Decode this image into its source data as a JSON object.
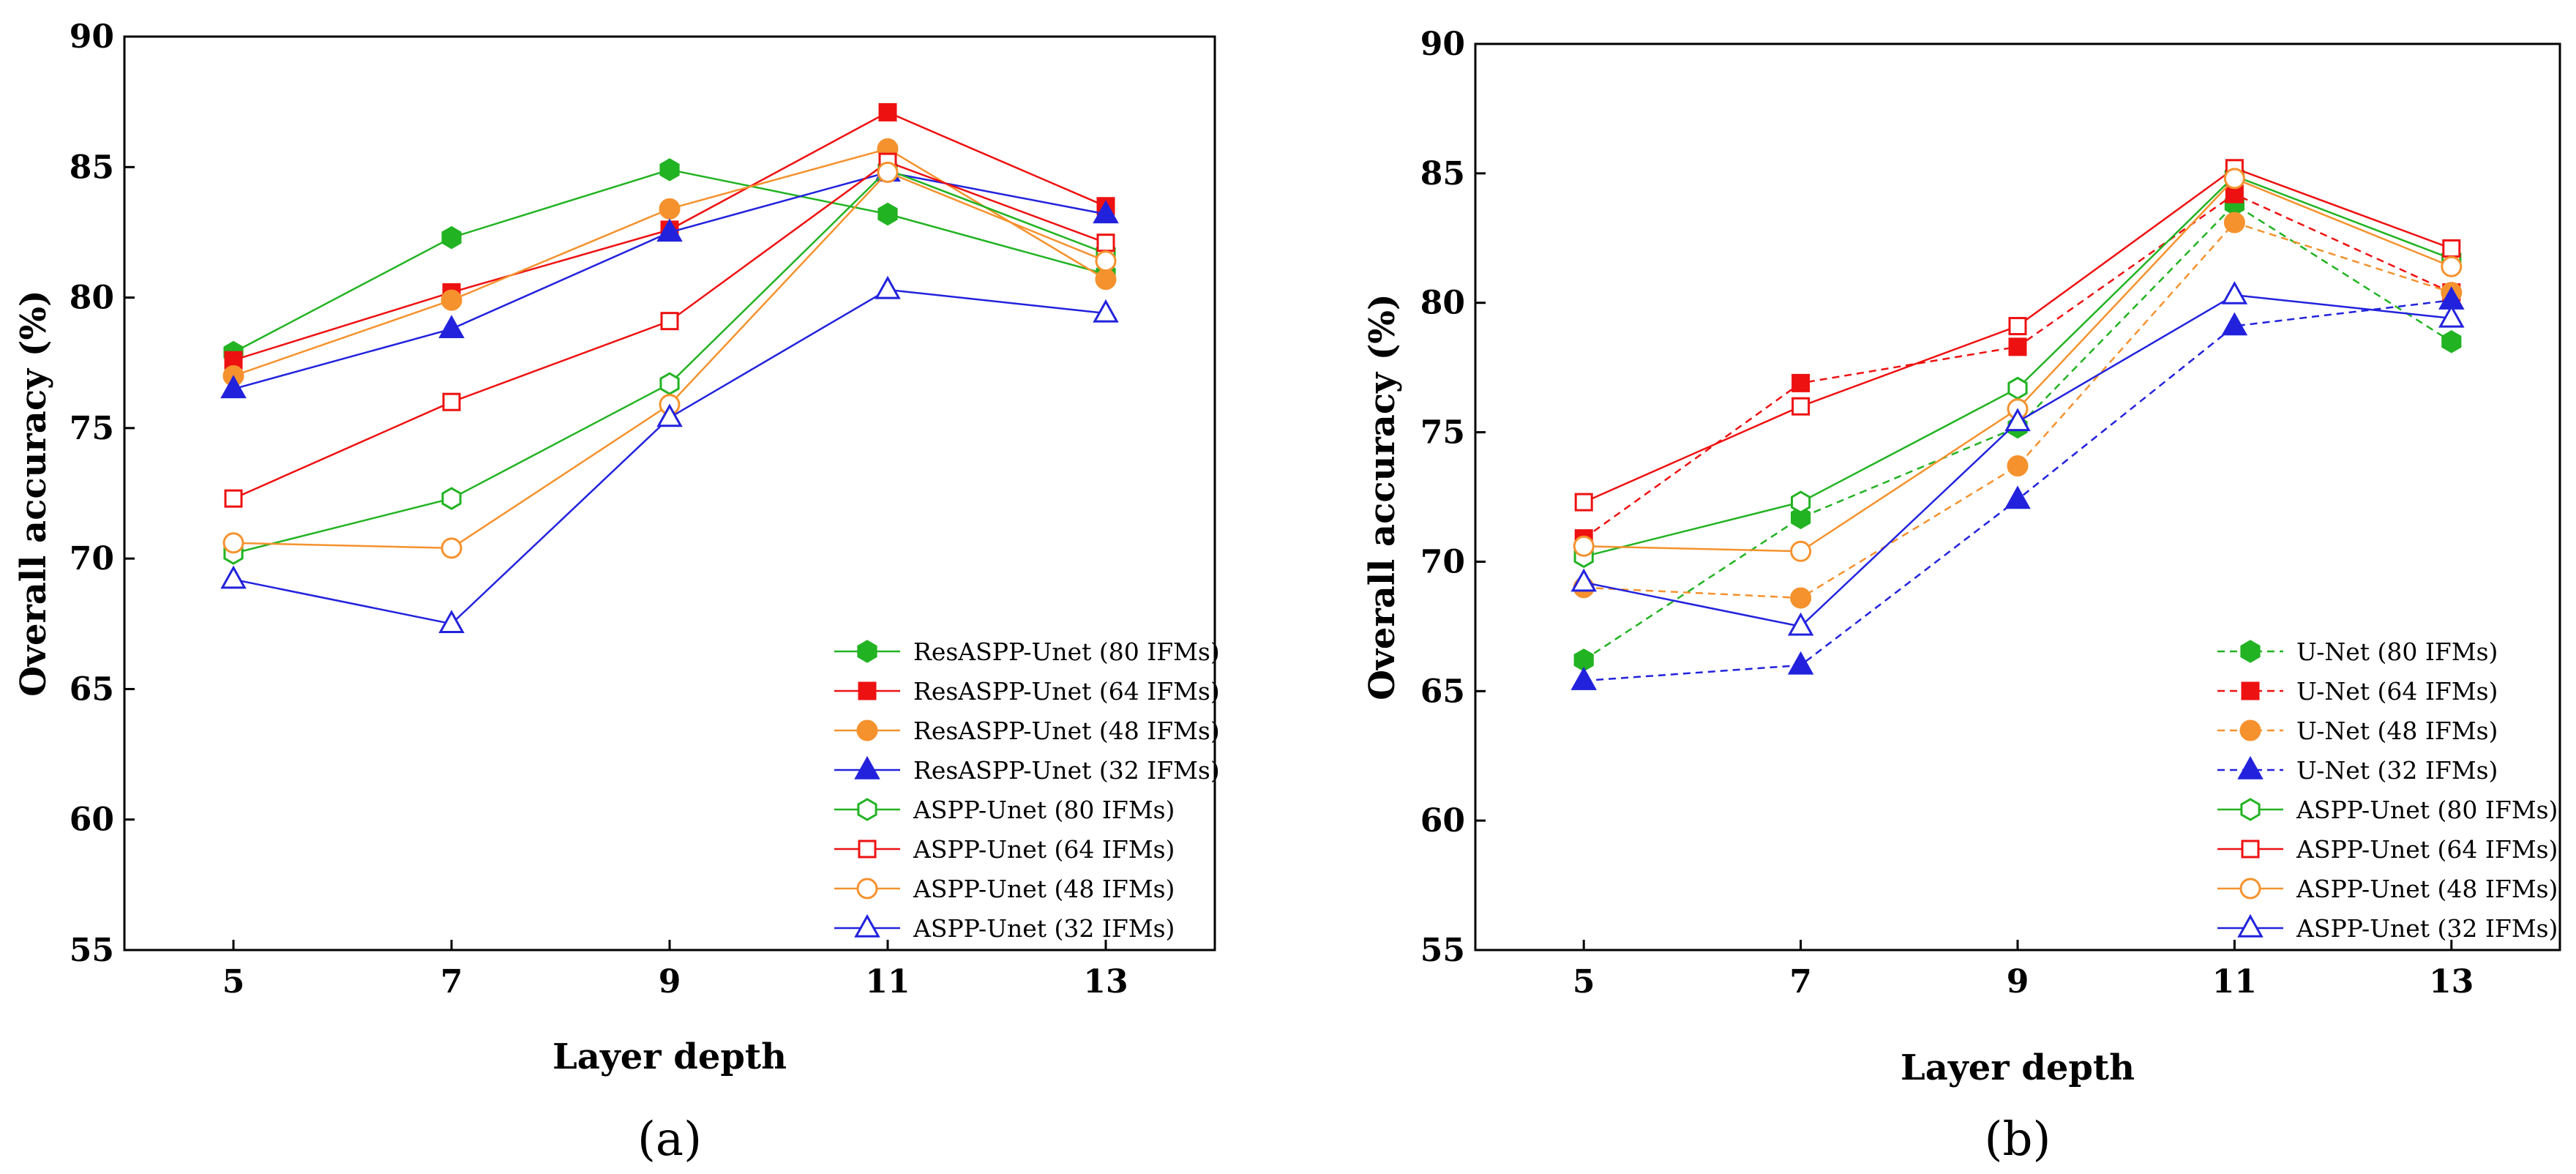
{
  "chart_data": [
    {
      "type": "line",
      "panel_label": "(a)",
      "xlabel": "Layer depth",
      "ylabel": "Overall accuracy (%)",
      "x": [
        5,
        7,
        9,
        11,
        13
      ],
      "xlim": [
        4,
        14
      ],
      "ylim": [
        55,
        90
      ],
      "yticks": [
        55,
        60,
        65,
        70,
        75,
        80,
        85,
        90
      ],
      "legend_position": "bottom-right",
      "series": [
        {
          "name": "ResASPP-Unet (80 IFMs)",
          "color": "#22b322",
          "marker": "hexagon",
          "filled": true,
          "dashed": false,
          "values": [
            77.9,
            82.3,
            84.9,
            83.2,
            80.9
          ]
        },
        {
          "name": "ResASPP-Unet (64 IFMs)",
          "color": "#ee1111",
          "marker": "square",
          "filled": true,
          "dashed": false,
          "values": [
            77.6,
            80.2,
            82.6,
            87.1,
            83.5
          ]
        },
        {
          "name": "ResASPP-Unet (48 IFMs)",
          "color": "#f5922e",
          "marker": "circle",
          "filled": true,
          "dashed": false,
          "values": [
            77.0,
            79.9,
            83.4,
            85.7,
            80.7
          ]
        },
        {
          "name": "ResASPP-Unet (32 IFMs)",
          "color": "#2222dd",
          "marker": "triangle",
          "filled": true,
          "dashed": false,
          "values": [
            76.5,
            78.8,
            82.5,
            84.8,
            83.2
          ]
        },
        {
          "name": "ASPP-Unet (80 IFMs)",
          "color": "#22b322",
          "marker": "hexagon",
          "filled": false,
          "dashed": false,
          "values": [
            70.2,
            72.3,
            76.7,
            84.9,
            81.7
          ]
        },
        {
          "name": "ASPP-Unet (64 IFMs)",
          "color": "#ee1111",
          "marker": "square",
          "filled": false,
          "dashed": false,
          "values": [
            72.3,
            76.0,
            79.1,
            85.2,
            82.1
          ]
        },
        {
          "name": "ASPP-Unet (48 IFMs)",
          "color": "#f5922e",
          "marker": "circle",
          "filled": false,
          "dashed": false,
          "values": [
            70.6,
            70.4,
            75.9,
            84.8,
            81.4
          ]
        },
        {
          "name": "ASPP-Unet (32 IFMs)",
          "color": "#2222dd",
          "marker": "triangle",
          "filled": false,
          "dashed": false,
          "values": [
            69.2,
            67.5,
            75.4,
            80.3,
            79.4
          ]
        }
      ]
    },
    {
      "type": "line",
      "panel_label": "(b)",
      "xlabel": "Layer depth",
      "ylabel": "Overall accuracy (%)",
      "x": [
        5,
        7,
        9,
        11,
        13
      ],
      "xlim": [
        4,
        14
      ],
      "ylim": [
        55,
        90
      ],
      "yticks": [
        55,
        60,
        65,
        70,
        75,
        80,
        85,
        90
      ],
      "legend_position": "bottom-right",
      "series": [
        {
          "name": "U-Net (80 IFMs)",
          "color": "#22b322",
          "marker": "hexagon",
          "filled": true,
          "dashed": true,
          "values": [
            66.2,
            71.7,
            75.2,
            83.8,
            78.5
          ]
        },
        {
          "name": "U-Net (64 IFMs)",
          "color": "#ee1111",
          "marker": "square",
          "filled": true,
          "dashed": true,
          "values": [
            70.9,
            76.9,
            78.3,
            84.2,
            80.4
          ]
        },
        {
          "name": "U-Net (48 IFMs)",
          "color": "#f5922e",
          "marker": "circle",
          "filled": true,
          "dashed": true,
          "values": [
            69.0,
            68.6,
            73.7,
            83.1,
            80.4
          ]
        },
        {
          "name": "U-Net (32 IFMs)",
          "color": "#2222dd",
          "marker": "triangle",
          "filled": true,
          "dashed": true,
          "values": [
            65.4,
            66.0,
            72.4,
            79.1,
            80.1
          ]
        },
        {
          "name": "ASPP-Unet (80 IFMs)",
          "color": "#22b322",
          "marker": "hexagon",
          "filled": false,
          "dashed": false,
          "values": [
            70.2,
            72.3,
            76.7,
            84.9,
            81.7
          ]
        },
        {
          "name": "ASPP-Unet (64 IFMs)",
          "color": "#ee1111",
          "marker": "square",
          "filled": false,
          "dashed": false,
          "values": [
            72.3,
            76.0,
            79.1,
            85.2,
            82.1
          ]
        },
        {
          "name": "ASPP-Unet (48 IFMs)",
          "color": "#f5922e",
          "marker": "circle",
          "filled": false,
          "dashed": false,
          "values": [
            70.6,
            70.4,
            75.9,
            84.8,
            81.4
          ]
        },
        {
          "name": "ASPP-Unet (32 IFMs)",
          "color": "#2222dd",
          "marker": "triangle",
          "filled": false,
          "dashed": false,
          "values": [
            69.2,
            67.5,
            75.4,
            80.3,
            79.4
          ]
        }
      ]
    }
  ]
}
